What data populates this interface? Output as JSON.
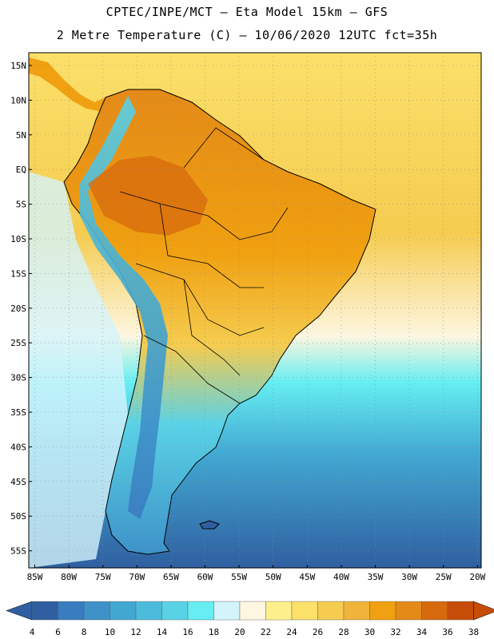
{
  "header": {
    "line1": "CPTEC/INPE/MCT –  Eta Model 15km – GFS",
    "line2": "2 Metre Temperature (C) – 10/06/2020 12UTC fct=35h"
  },
  "axes": {
    "lat_labels": [
      "15N",
      "10N",
      "5N",
      "EQ",
      "5S",
      "10S",
      "15S",
      "20S",
      "25S",
      "30S",
      "35S",
      "40S",
      "45S",
      "50S",
      "55S"
    ],
    "lon_labels": [
      "85W",
      "80W",
      "75W",
      "70W",
      "65W",
      "60W",
      "55W",
      "50W",
      "45W",
      "40W",
      "35W",
      "30W",
      "25W",
      "20W"
    ]
  },
  "colorbar": {
    "labels": [
      "4",
      "6",
      "8",
      "10",
      "12",
      "14",
      "16",
      "18",
      "20",
      "22",
      "24",
      "26",
      "28",
      "30",
      "32",
      "34",
      "36",
      "38"
    ],
    "colors": [
      "#2f5fa0",
      "#3a7cc0",
      "#3e92c8",
      "#42a8d2",
      "#4cbcdc",
      "#5ad2e6",
      "#66eef2",
      "#d4f4fb",
      "#fdf6e0",
      "#fdf08c",
      "#fbe06a",
      "#f5cc50",
      "#f0b43a",
      "#f0a010",
      "#e38a18",
      "#d76a0c",
      "#c64d08"
    ],
    "low_color": "#2f5fa0",
    "high_color": "#c64d08"
  },
  "map": {
    "ocean_gradient": [
      "#fbe06a",
      "#f5cc50",
      "#fdf6e0",
      "#66eef2",
      "#42a8d2",
      "#2f5fa0"
    ],
    "land_gradient": [
      "#e38a18",
      "#f0a010",
      "#f5cc50",
      "#5ad2e6",
      "#3e92c8"
    ]
  }
}
